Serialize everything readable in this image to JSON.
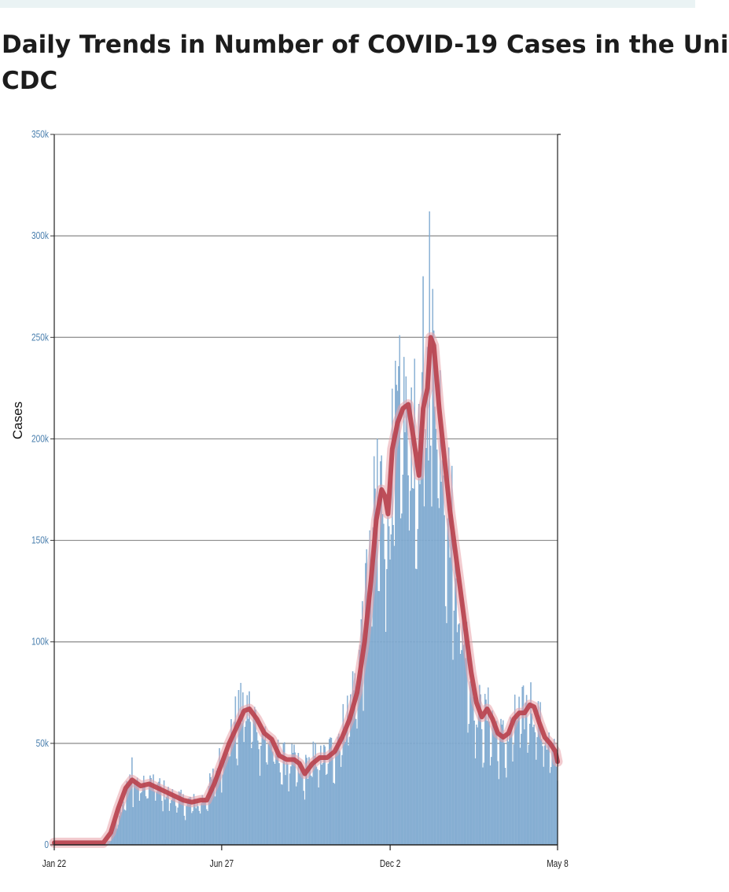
{
  "page": {
    "title_line1": "Daily Trends in Number of COVID-19 Cases in the Uni",
    "title_line2": "CDC"
  },
  "colors": {
    "bars": "#8fb4d6",
    "bar_stroke": "#6d9ec9",
    "moving_average": "#b8434f",
    "moving_average_glow": "#e8a0a8",
    "gridlines": "#8a8a8a",
    "y_tick_text": "#4a7fae",
    "x_tick_text": "#222222"
  },
  "chart_data": {
    "type": "bar",
    "title": "",
    "xlabel": "",
    "ylabel": "Cases",
    "ylim": [
      0,
      350000
    ],
    "grid": true,
    "y_ticks": [
      {
        "value": 0,
        "label": "0"
      },
      {
        "value": 50000,
        "label": "50k"
      },
      {
        "value": 100000,
        "label": "100k"
      },
      {
        "value": 150000,
        "label": "150k"
      },
      {
        "value": 200000,
        "label": "200k"
      },
      {
        "value": 250000,
        "label": "250k"
      },
      {
        "value": 300000,
        "label": "300k"
      },
      {
        "value": 350000,
        "label": "350k"
      }
    ],
    "x_ticks": [
      {
        "date": "2020-01-22",
        "label": "Jan 22"
      },
      {
        "date": "2020-06-27",
        "label": "Jun 27"
      },
      {
        "date": "2020-12-02",
        "label": "Dec 2"
      },
      {
        "date": "2021-05-08",
        "label": "May 8"
      }
    ],
    "x_range": [
      "2020-01-22",
      "2021-05-08"
    ],
    "series": [
      {
        "type": "bar",
        "points": [
          [
            "2020-01-22",
            0
          ],
          [
            "2020-03-10",
            500
          ],
          [
            "2020-03-15",
            3000
          ],
          [
            "2020-03-20",
            12000
          ],
          [
            "2020-03-25",
            20000
          ],
          [
            "2020-03-30",
            28000
          ],
          [
            "2020-04-04",
            32000
          ],
          [
            "2020-04-09",
            31000
          ],
          [
            "2020-04-14",
            29000
          ],
          [
            "2020-04-19",
            30000
          ],
          [
            "2020-04-24",
            31000
          ],
          [
            "2020-04-29",
            29000
          ],
          [
            "2020-05-04",
            27000
          ],
          [
            "2020-05-09",
            25000
          ],
          [
            "2020-05-14",
            24000
          ],
          [
            "2020-05-19",
            23000
          ],
          [
            "2020-05-24",
            21000
          ],
          [
            "2020-05-29",
            22000
          ],
          [
            "2020-06-03",
            21000
          ],
          [
            "2020-06-08",
            22000
          ],
          [
            "2020-06-13",
            26000
          ],
          [
            "2020-06-18",
            32000
          ],
          [
            "2020-06-23",
            38000
          ],
          [
            "2020-06-28",
            46000
          ],
          [
            "2020-07-03",
            53000
          ],
          [
            "2020-07-08",
            60000
          ],
          [
            "2020-07-13",
            66000
          ],
          [
            "2020-07-18",
            68000
          ],
          [
            "2020-07-23",
            67000
          ],
          [
            "2020-07-28",
            63000
          ],
          [
            "2020-08-02",
            58000
          ],
          [
            "2020-08-07",
            54000
          ],
          [
            "2020-08-12",
            52000
          ],
          [
            "2020-08-17",
            46000
          ],
          [
            "2020-08-22",
            43000
          ],
          [
            "2020-08-27",
            42000
          ],
          [
            "2020-09-01",
            42000
          ],
          [
            "2020-09-06",
            40000
          ],
          [
            "2020-09-11",
            35000
          ],
          [
            "2020-09-16",
            40000
          ],
          [
            "2020-09-21",
            43000
          ],
          [
            "2020-09-26",
            44000
          ],
          [
            "2020-10-01",
            43000
          ],
          [
            "2020-10-06",
            46000
          ],
          [
            "2020-10-11",
            50000
          ],
          [
            "2020-10-16",
            56000
          ],
          [
            "2020-10-21",
            62000
          ],
          [
            "2020-10-26",
            72000
          ],
          [
            "2020-10-31",
            82000
          ],
          [
            "2020-11-05",
            100000
          ],
          [
            "2020-11-10",
            130000
          ],
          [
            "2020-11-15",
            155000
          ],
          [
            "2020-11-20",
            170000
          ],
          [
            "2020-11-25",
            178000
          ],
          [
            "2020-11-30",
            162000
          ],
          [
            "2020-12-05",
            195000
          ],
          [
            "2020-12-10",
            208000
          ],
          [
            "2020-12-15",
            215000
          ],
          [
            "2020-12-20",
            218000
          ],
          [
            "2020-12-25",
            200000
          ],
          [
            "2020-12-30",
            182000
          ],
          [
            "2021-01-04",
            215000
          ],
          [
            "2021-01-09",
            240000
          ],
          [
            "2021-01-14",
            238000
          ],
          [
            "2021-01-19",
            215000
          ],
          [
            "2021-01-24",
            180000
          ],
          [
            "2021-01-29",
            160000
          ],
          [
            "2021-02-03",
            130000
          ],
          [
            "2021-02-08",
            115000
          ],
          [
            "2021-02-13",
            95000
          ],
          [
            "2021-02-18",
            75000
          ],
          [
            "2021-02-23",
            68000
          ],
          [
            "2021-02-28",
            63000
          ],
          [
            "2021-03-05",
            66000
          ],
          [
            "2021-03-10",
            60000
          ],
          [
            "2021-03-15",
            54000
          ],
          [
            "2021-03-20",
            53000
          ],
          [
            "2021-03-25",
            56000
          ],
          [
            "2021-03-30",
            64000
          ],
          [
            "2021-04-04",
            65000
          ],
          [
            "2021-04-09",
            68000
          ],
          [
            "2021-04-14",
            71000
          ],
          [
            "2021-04-19",
            66000
          ],
          [
            "2021-04-24",
            57000
          ],
          [
            "2021-04-29",
            52000
          ],
          [
            "2021-05-04",
            46000
          ],
          [
            "2021-05-08",
            40000
          ]
        ],
        "notable_peaks": [
          [
            "2020-04-04",
            43000
          ],
          [
            "2020-07-17",
            75000
          ],
          [
            "2020-11-06",
            120000
          ],
          [
            "2020-11-20",
            200000
          ],
          [
            "2020-12-11",
            251000
          ],
          [
            "2021-01-02",
            280000
          ],
          [
            "2021-01-08",
            312000
          ],
          [
            "2021-04-13",
            80000
          ]
        ]
      },
      {
        "type": "line",
        "points": [
          [
            "2020-01-22",
            1000
          ],
          [
            "2020-03-08",
            1000
          ],
          [
            "2020-03-15",
            6000
          ],
          [
            "2020-03-22",
            18000
          ],
          [
            "2020-03-29",
            28000
          ],
          [
            "2020-04-04",
            32000
          ],
          [
            "2020-04-12",
            29000
          ],
          [
            "2020-04-20",
            30000
          ],
          [
            "2020-04-28",
            28000
          ],
          [
            "2020-05-06",
            26000
          ],
          [
            "2020-05-14",
            24000
          ],
          [
            "2020-05-22",
            22000
          ],
          [
            "2020-05-30",
            21000
          ],
          [
            "2020-06-07",
            22000
          ],
          [
            "2020-06-13",
            22000
          ],
          [
            "2020-06-20",
            30000
          ],
          [
            "2020-06-27",
            40000
          ],
          [
            "2020-07-04",
            50000
          ],
          [
            "2020-07-11",
            58000
          ],
          [
            "2020-07-18",
            66000
          ],
          [
            "2020-07-23",
            67000
          ],
          [
            "2020-07-30",
            62000
          ],
          [
            "2020-08-06",
            55000
          ],
          [
            "2020-08-13",
            52000
          ],
          [
            "2020-08-20",
            44000
          ],
          [
            "2020-08-27",
            42000
          ],
          [
            "2020-09-03",
            42000
          ],
          [
            "2020-09-08",
            40000
          ],
          [
            "2020-09-13",
            35000
          ],
          [
            "2020-09-20",
            40000
          ],
          [
            "2020-09-27",
            43000
          ],
          [
            "2020-10-04",
            43000
          ],
          [
            "2020-10-11",
            46000
          ],
          [
            "2020-10-18",
            53000
          ],
          [
            "2020-10-25",
            62000
          ],
          [
            "2020-11-01",
            75000
          ],
          [
            "2020-11-08",
            100000
          ],
          [
            "2020-11-14",
            130000
          ],
          [
            "2020-11-19",
            160000
          ],
          [
            "2020-11-24",
            175000
          ],
          [
            "2020-11-27",
            172000
          ],
          [
            "2020-11-30",
            163000
          ],
          [
            "2020-12-04",
            195000
          ],
          [
            "2020-12-09",
            208000
          ],
          [
            "2020-12-14",
            215000
          ],
          [
            "2020-12-19",
            217000
          ],
          [
            "2020-12-24",
            200000
          ],
          [
            "2020-12-29",
            182000
          ],
          [
            "2021-01-02",
            215000
          ],
          [
            "2021-01-06",
            225000
          ],
          [
            "2021-01-09",
            250000
          ],
          [
            "2021-01-12",
            246000
          ],
          [
            "2021-01-17",
            215000
          ],
          [
            "2021-01-22",
            190000
          ],
          [
            "2021-01-27",
            165000
          ],
          [
            "2021-02-01",
            145000
          ],
          [
            "2021-02-06",
            125000
          ],
          [
            "2021-02-11",
            105000
          ],
          [
            "2021-02-16",
            85000
          ],
          [
            "2021-02-21",
            70000
          ],
          [
            "2021-02-26",
            63000
          ],
          [
            "2021-03-03",
            67000
          ],
          [
            "2021-03-08",
            62000
          ],
          [
            "2021-03-13",
            55000
          ],
          [
            "2021-03-18",
            53000
          ],
          [
            "2021-03-23",
            55000
          ],
          [
            "2021-03-28",
            62000
          ],
          [
            "2021-04-02",
            65000
          ],
          [
            "2021-04-07",
            65000
          ],
          [
            "2021-04-12",
            69000
          ],
          [
            "2021-04-16",
            68000
          ],
          [
            "2021-04-21",
            60000
          ],
          [
            "2021-04-26",
            53000
          ],
          [
            "2021-05-01",
            50000
          ],
          [
            "2021-05-06",
            46000
          ],
          [
            "2021-05-08",
            41000
          ]
        ]
      }
    ]
  }
}
